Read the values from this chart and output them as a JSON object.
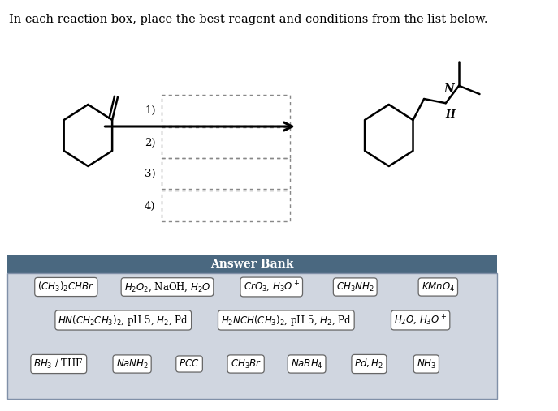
{
  "title": "In each reaction box, place the best reagent and conditions from the list below.",
  "bg_color": "#ffffff",
  "answer_bank_header_color": "#4a6880",
  "answer_bank_header_text": "Answer Bank",
  "answer_bank_bg": "#d0d6e0",
  "fig_width": 6.87,
  "fig_height": 5.07,
  "dpi": 100
}
